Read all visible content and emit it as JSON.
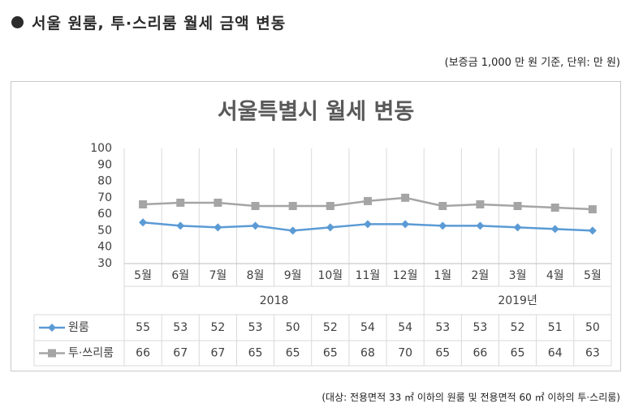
{
  "heading": "서울 원룸, 투·스리룸 월세 금액 변동",
  "unit_note": "(보증금 1,000 만 원 기준, 단위: 만 원)",
  "footnote": "(대상: 전용면적 33 ㎡ 이하의 원룸 및 전용면적 60 ㎡ 이하의 투·스리룸)",
  "colors": {
    "one_room": "#5b9bd5",
    "two_three_room": "#a5a5a5"
  },
  "chart_data": {
    "type": "line",
    "title": "서울특별시 월세 변동",
    "categories": [
      "5월",
      "6월",
      "7월",
      "8월",
      "9월",
      "10월",
      "11월",
      "12월",
      "1월",
      "2월",
      "3월",
      "4월",
      "5월"
    ],
    "year_groups": [
      {
        "label": "2018",
        "start": 0,
        "end": 7
      },
      {
        "label": "2019년",
        "start": 8,
        "end": 12
      }
    ],
    "ylim": [
      30,
      100
    ],
    "yticks": [
      30,
      40,
      50,
      60,
      70,
      80,
      90,
      100
    ],
    "grid": "vertical",
    "legend": "data-table",
    "series": [
      {
        "name": "원룸",
        "marker": "diamond",
        "values": [
          55,
          53,
          52,
          53,
          50,
          52,
          54,
          54,
          53,
          53,
          52,
          51,
          50
        ]
      },
      {
        "name": "투·쓰리룸",
        "marker": "square",
        "values": [
          66,
          67,
          67,
          65,
          65,
          65,
          68,
          70,
          65,
          66,
          65,
          64,
          63
        ]
      }
    ]
  }
}
